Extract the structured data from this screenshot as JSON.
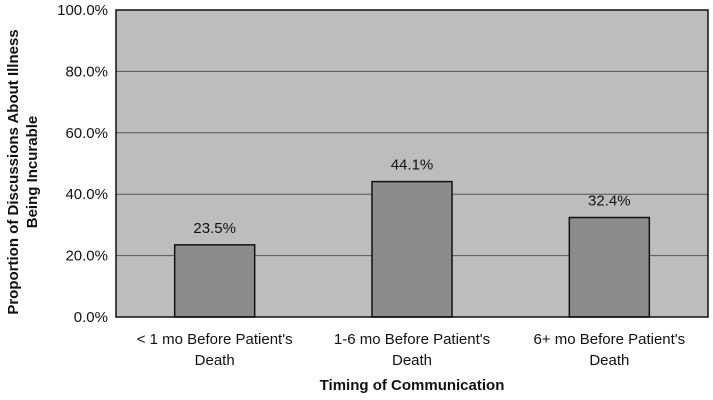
{
  "chart_data": {
    "type": "bar",
    "categories": [
      [
        "< 1 mo Before Patient's",
        "Death"
      ],
      [
        "1-6 mo Before Patient's",
        "Death"
      ],
      [
        "6+ mo Before Patient's",
        "Death"
      ]
    ],
    "values": [
      23.5,
      44.1,
      32.4
    ],
    "data_labels": [
      "23.5%",
      "44.1%",
      "32.4%"
    ],
    "ylim": [
      0,
      100
    ],
    "yticks": [
      "0.0%",
      "20.0%",
      "40.0%",
      "60.0%",
      "80.0%",
      "100.0%"
    ],
    "xlabel": "Timing of Communication",
    "ylabel": [
      "Proportion of Discussions About Illness",
      "Being Incurable"
    ],
    "grid": true,
    "legend": "none",
    "colors": {
      "plot_bg": "#bdbdbd",
      "bar": "#8c8c8c",
      "gridline": "#555555",
      "border": "#111111"
    }
  }
}
